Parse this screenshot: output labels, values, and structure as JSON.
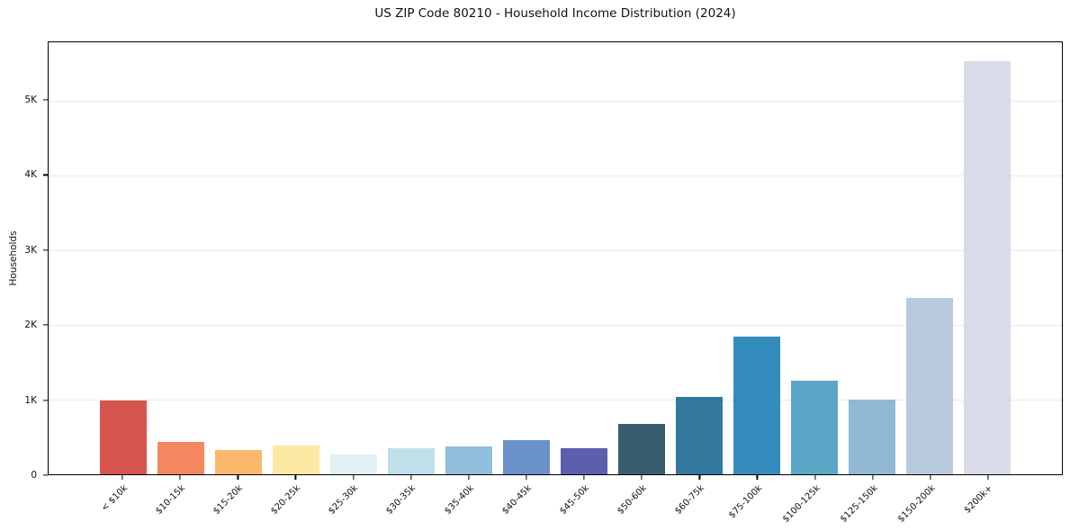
{
  "title": "US ZIP Code 80210 - Household Income Distribution (2024)",
  "chart_data": {
    "type": "bar",
    "title": "US ZIP Code 80210 - Household Income Distribution (2024)",
    "xlabel": "",
    "ylabel": "Households",
    "categories": [
      "< $10k",
      "$10-15k",
      "$15-20k",
      "$20-25k",
      "$25-30k",
      "$30-35k",
      "$35-40k",
      "$40-45k",
      "$45-50k",
      "$50-60k",
      "$60-75k",
      "$75-100k",
      "$100-125k",
      "$125-150k",
      "$150-200k",
      "$200k+"
    ],
    "values": [
      985,
      430,
      325,
      390,
      270,
      345,
      375,
      455,
      350,
      670,
      1030,
      1840,
      1255,
      1000,
      2355,
      5530
    ],
    "bar_colors": [
      "#d6554f",
      "#f4875f",
      "#fbb86d",
      "#fde8a4",
      "#e2eff5",
      "#bfe0ea",
      "#92bfdc",
      "#6b93ca",
      "#5c5fad",
      "#385d6f",
      "#33789f",
      "#348bbe",
      "#5ba7c7",
      "#91b9d4",
      "#b9cade",
      "#d9dbe8"
    ],
    "ylim": [
      0,
      5780
    ],
    "yticks": {
      "values": [
        0,
        1000,
        2000,
        3000,
        4000,
        5000
      ],
      "labels": [
        "0",
        "1K",
        "2K",
        "3K",
        "4K",
        "5K"
      ]
    },
    "grid": "horizontal",
    "grid_color": "#e8e8f0",
    "legend": "none",
    "spine_color": "#000000",
    "background_color": "#ffffff"
  }
}
